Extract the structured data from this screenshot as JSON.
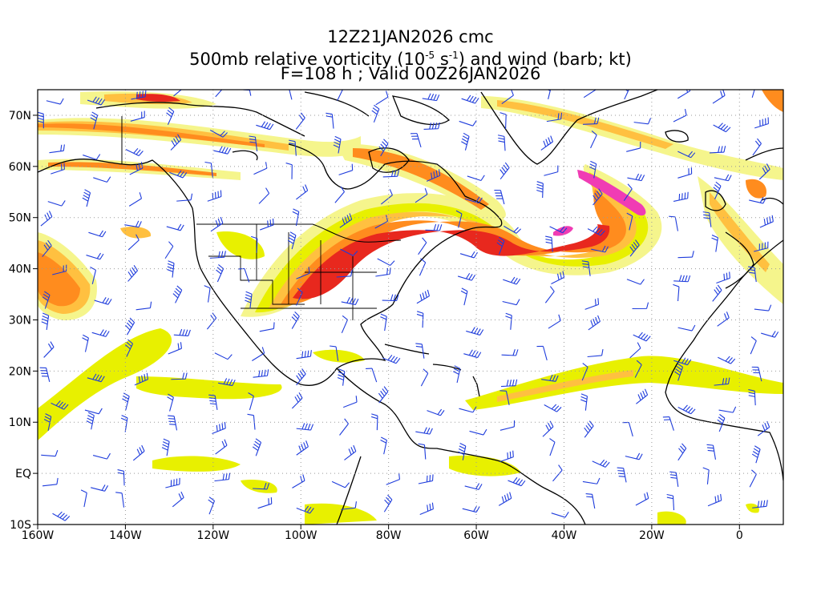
{
  "title": {
    "line1": "12Z21JAN2026 cmc",
    "line2_prefix": "500mb relative vorticity (10",
    "line2_exp1": "-5",
    "line2_mid": " s",
    "line2_exp2": "-1",
    "line2_suffix": ") and wind (barb; kt)",
    "line3": "F=108 h ; Valid 00Z26JAN2026"
  },
  "map": {
    "lon_range": [
      -160,
      10
    ],
    "lat_range": [
      -10,
      75
    ],
    "lon_ticks": [
      {
        "lon": -160,
        "label": "160W"
      },
      {
        "lon": -140,
        "label": "140W"
      },
      {
        "lon": -120,
        "label": "120W"
      },
      {
        "lon": -100,
        "label": "100W"
      },
      {
        "lon": -80,
        "label": "80W"
      },
      {
        "lon": -60,
        "label": "60W"
      },
      {
        "lon": -40,
        "label": "40W"
      },
      {
        "lon": -20,
        "label": "20W"
      },
      {
        "lon": 0,
        "label": "0"
      }
    ],
    "lat_ticks": [
      {
        "lat": 70,
        "label": "70N"
      },
      {
        "lat": 60,
        "label": "60N"
      },
      {
        "lat": 50,
        "label": "50N"
      },
      {
        "lat": 40,
        "label": "40N"
      },
      {
        "lat": 30,
        "label": "30N"
      },
      {
        "lat": 20,
        "label": "20N"
      },
      {
        "lat": 10,
        "label": "10N"
      },
      {
        "lat": 0,
        "label": "EQ"
      },
      {
        "lat": -10,
        "label": "10S"
      }
    ],
    "gridlines": "dotted",
    "colors": {
      "light_yellow": "#f5f58c",
      "yellow": "#e8f000",
      "orange_light": "#ffc040",
      "orange": "#ff8c1e",
      "red": "#e8281e",
      "magenta": "#f03cb4",
      "coastline": "#000000",
      "barb": "#1e3cdc"
    }
  }
}
